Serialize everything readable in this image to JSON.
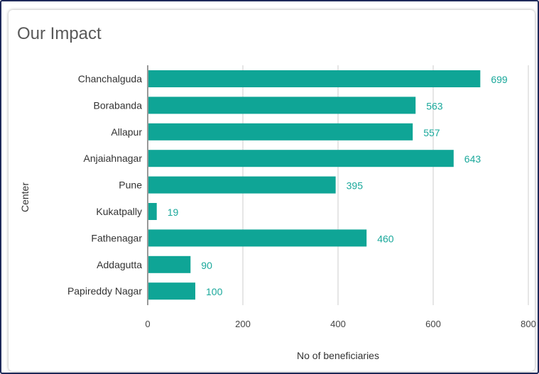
{
  "chart_data": {
    "type": "bar",
    "orientation": "horizontal",
    "title": "Our Impact",
    "xlabel": "No of beneficiaries",
    "ylabel": "Center",
    "xlim": [
      0,
      800
    ],
    "xticks": [
      "0",
      "200",
      "400",
      "600",
      "800"
    ],
    "grid": true,
    "categories": [
      "Chanchalguda",
      "Borabanda",
      "Allapur",
      "Anjaiahnagar",
      "Pune",
      "Kukatpally",
      "Fathenagar",
      "Addagutta",
      "Papireddy Nagar"
    ],
    "values": [
      699,
      563,
      557,
      643,
      395,
      19,
      460,
      90,
      100
    ],
    "bar_color": "#0fa596",
    "label_color": "#1aa89b"
  }
}
